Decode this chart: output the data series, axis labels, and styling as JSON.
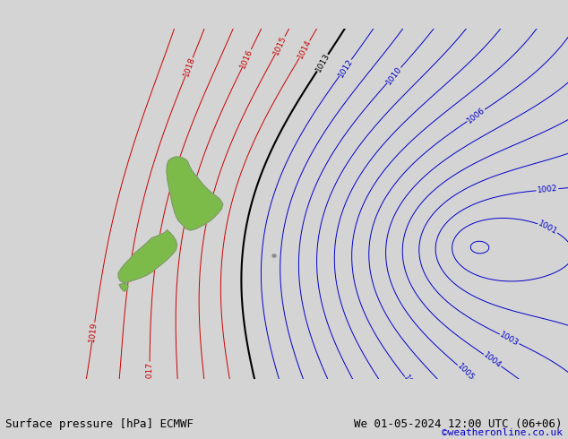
{
  "title_left": "Surface pressure [hPa] ECMWF",
  "title_right": "We 01-05-2024 12:00 UTC (06+06)",
  "credit": "©weatheronline.co.uk",
  "bg_color": "#d4d4d4",
  "land_color": "#7cba4a",
  "coast_color": "#888888",
  "isobar_blue_color": "#0000cc",
  "isobar_red_color": "#cc0000",
  "isobar_black_color": "#000000",
  "label_fontsize": 6.5,
  "title_fontsize": 9,
  "credit_fontsize": 8,
  "credit_color": "#0000cc",
  "xlim": [
    155,
    215
  ],
  "ylim": [
    -57,
    -20
  ],
  "figsize": [
    6.34,
    4.9
  ],
  "dpi": 100
}
